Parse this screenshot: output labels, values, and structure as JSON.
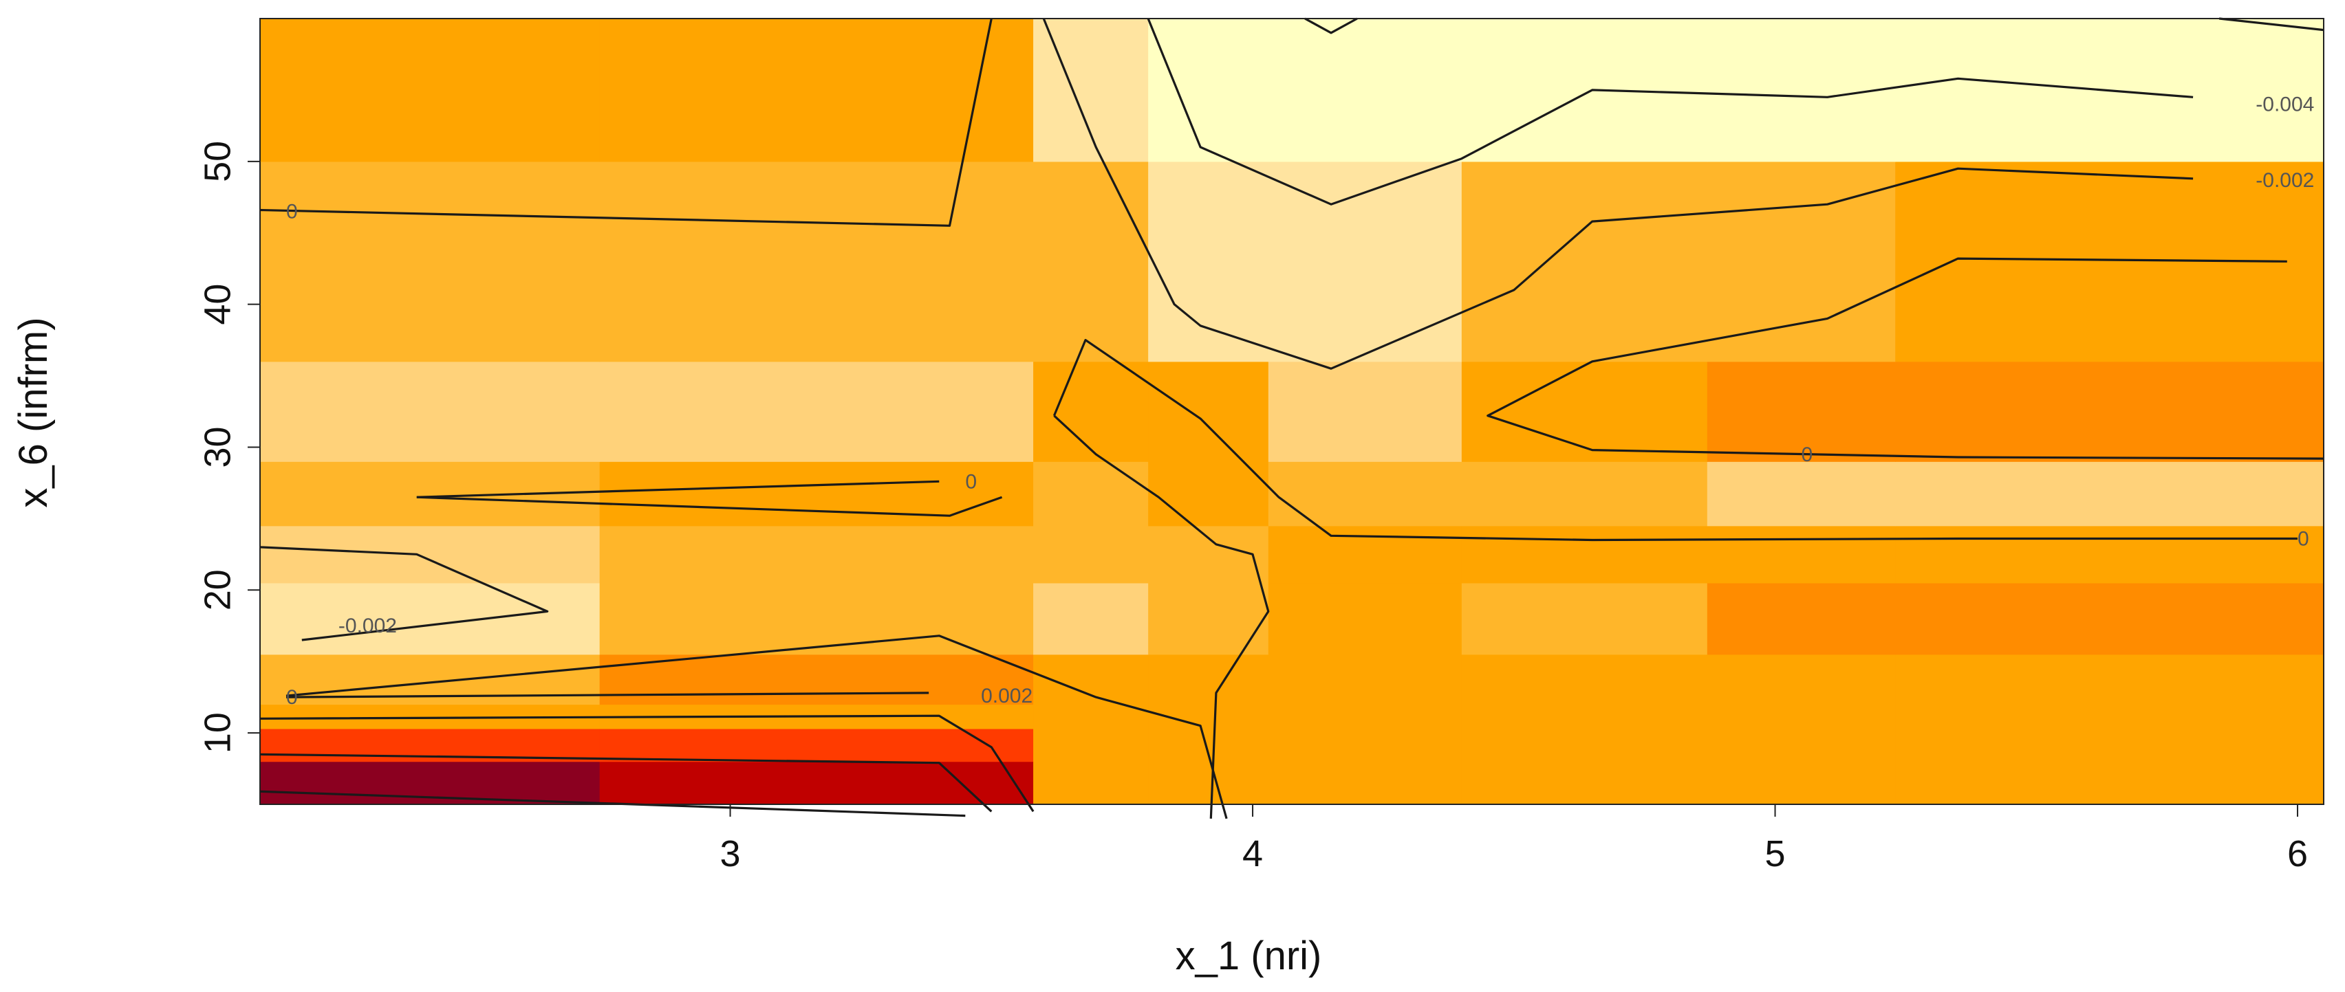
{
  "chart_data": {
    "type": "heatmap",
    "title": "",
    "xlabel": "x_1 (nri)",
    "ylabel": "x_6 (infrm)",
    "xlim": [
      2.1,
      6.05
    ],
    "ylim": [
      5,
      60
    ],
    "x_ticks": [
      3,
      4,
      5,
      6
    ],
    "y_ticks": [
      10,
      20,
      30,
      40,
      50
    ],
    "x_tick_labels": [
      "3",
      "4",
      "5",
      "6"
    ],
    "y_tick_labels": [
      "10",
      "20",
      "30",
      "40",
      "50"
    ],
    "grid": false,
    "legend": "none",
    "palette": {
      "darkred": "#8b0020",
      "red": "#c00000",
      "redorange": "#ff3b00",
      "orange_dark": "#ff8c00",
      "orange": "#ffa500",
      "orange_light": "#ffb62a",
      "light": "#ffd27a",
      "lighter": "#ffe4a0",
      "palest": "#ffffc2"
    },
    "x_bins": [
      2.1,
      2.75,
      3.58,
      3.8,
      4.03,
      4.4,
      4.87,
      5.23,
      6.05
    ],
    "y_bins": [
      5,
      8,
      10.3,
      12,
      15.5,
      20.5,
      24.5,
      29,
      36,
      50,
      60
    ],
    "cells": [
      [
        "darkred",
        "red",
        "orange",
        "orange",
        "orange",
        "orange",
        "orange",
        "orange"
      ],
      [
        "redorange",
        "redorange",
        "orange",
        "orange",
        "orange",
        "orange",
        "orange",
        "orange"
      ],
      [
        "orange",
        "orange",
        "orange",
        "orange",
        "orange",
        "orange",
        "orange",
        "orange"
      ],
      [
        "orange_light",
        "orange_dark",
        "orange",
        "orange",
        "orange",
        "orange",
        "orange",
        "orange"
      ],
      [
        "lighter",
        "orange_light",
        "light",
        "orange_light",
        "orange",
        "orange_light",
        "orange_dark",
        "orange_dark"
      ],
      [
        "light",
        "orange_light",
        "orange_light",
        "orange_light",
        "orange",
        "orange",
        "orange",
        "orange"
      ],
      [
        "orange_light",
        "orange",
        "orange_light",
        "orange",
        "orange_light",
        "orange_light",
        "light",
        "light"
      ],
      [
        "light",
        "light",
        "orange",
        "orange",
        "light",
        "orange",
        "orange_dark",
        "orange_dark"
      ],
      [
        "orange_light",
        "orange_light",
        "orange_light",
        "lighter",
        "lighter",
        "orange_light",
        "orange_light",
        "orange"
      ],
      [
        "orange",
        "orange",
        "lighter",
        "palest",
        "palest",
        "palest",
        "palest",
        "palest"
      ]
    ],
    "contours": [
      {
        "points": [
          [
            2.1,
            5.9
          ],
          [
            3.45,
            4.2
          ]
        ]
      },
      {
        "points": [
          [
            2.1,
            8.5
          ],
          [
            3.4,
            7.9
          ],
          [
            3.5,
            4.5
          ]
        ]
      },
      {
        "points": [
          [
            2.1,
            11
          ],
          [
            3.4,
            11.2
          ],
          [
            3.5,
            9
          ],
          [
            3.58,
            4.5
          ]
        ]
      },
      {
        "points": [
          [
            2.15,
            12.5
          ],
          [
            3.38,
            12.8
          ]
        ]
      },
      {
        "points": [
          [
            2.15,
            12.6
          ],
          [
            3.4,
            16.8
          ],
          [
            3.7,
            12.5
          ],
          [
            3.9,
            10.5
          ],
          [
            3.95,
            4
          ]
        ]
      },
      {
        "points": [
          [
            2.1,
            23
          ],
          [
            2.4,
            22.5
          ],
          [
            2.65,
            18.5
          ],
          [
            2.18,
            16.5
          ]
        ]
      },
      {
        "points": [
          [
            2.4,
            26.5
          ],
          [
            3.4,
            27.6
          ]
        ]
      },
      {
        "points": [
          [
            2.4,
            26.5
          ],
          [
            3.42,
            25.2
          ],
          [
            3.52,
            26.5
          ]
        ]
      },
      {
        "points": [
          [
            2.1,
            46.6
          ],
          [
            3.42,
            45.5
          ],
          [
            3.5,
            60
          ]
        ]
      },
      {
        "points": [
          [
            3.6,
            60
          ],
          [
            3.7,
            51
          ],
          [
            3.85,
            40
          ],
          [
            3.9,
            38.5
          ],
          [
            4.15,
            35.5
          ],
          [
            4.5,
            41
          ],
          [
            4.65,
            45.8
          ],
          [
            5.1,
            47
          ],
          [
            5.35,
            49.5
          ],
          [
            5.8,
            48.8
          ]
        ]
      },
      {
        "points": [
          [
            3.8,
            60
          ],
          [
            3.9,
            51
          ],
          [
            4.15,
            47
          ],
          [
            4.4,
            50.2
          ],
          [
            4.65,
            55
          ],
          [
            5.1,
            54.5
          ],
          [
            5.35,
            55.8
          ],
          [
            5.8,
            54.5
          ]
        ]
      },
      {
        "points": [
          [
            4.1,
            60
          ],
          [
            4.15,
            59
          ],
          [
            4.2,
            60
          ]
        ]
      },
      {
        "points": [
          [
            5.85,
            60
          ],
          [
            6.05,
            59.2
          ]
        ]
      },
      {
        "points": [
          [
            3.62,
            32.2
          ],
          [
            3.68,
            37.5
          ],
          [
            3.9,
            32
          ],
          [
            4.05,
            26.5
          ],
          [
            4.15,
            23.8
          ],
          [
            4.65,
            23.5
          ],
          [
            5.35,
            23.6
          ],
          [
            6.0,
            23.6
          ]
        ]
      },
      {
        "points": [
          [
            3.62,
            32.2
          ],
          [
            3.7,
            29.5
          ],
          [
            3.82,
            26.5
          ],
          [
            3.93,
            23.2
          ],
          [
            4.0,
            22.5
          ],
          [
            4.03,
            18.5
          ],
          [
            3.93,
            12.8
          ],
          [
            3.92,
            4
          ]
        ]
      },
      {
        "points": [
          [
            5.98,
            43
          ],
          [
            5.35,
            43.2
          ],
          [
            5.1,
            39
          ],
          [
            4.65,
            36
          ],
          [
            4.45,
            32.2
          ],
          [
            4.65,
            29.8
          ],
          [
            5.35,
            29.3
          ],
          [
            6.05,
            29.2
          ]
        ]
      }
    ],
    "annotations": [
      {
        "text": "-0.004",
        "x": 5.92,
        "y": 54
      },
      {
        "text": "-0.002",
        "x": 5.92,
        "y": 48.7
      },
      {
        "text": "0",
        "x": 2.15,
        "y": 46.5
      },
      {
        "text": "0",
        "x": 3.45,
        "y": 27.6
      },
      {
        "text": "0",
        "x": 5.05,
        "y": 29.5
      },
      {
        "text": "0",
        "x": 6.0,
        "y": 23.6
      },
      {
        "text": "-0.002",
        "x": 2.25,
        "y": 17.5
      },
      {
        "text": "0",
        "x": 2.15,
        "y": 12.5
      },
      {
        "text": "0.002",
        "x": 3.48,
        "y": 12.6
      }
    ]
  }
}
